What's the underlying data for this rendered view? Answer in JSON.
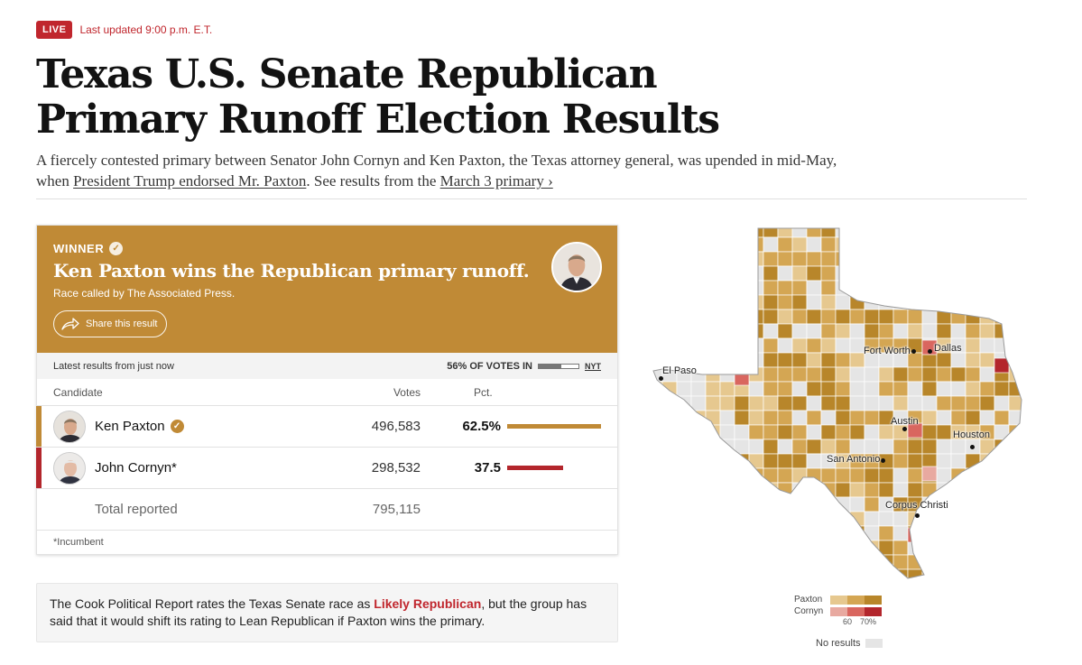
{
  "header": {
    "live_badge": "LIVE",
    "updated": "Last updated 9:00 p.m. E.T.",
    "headline": "Texas U.S. Senate Republican Primary Runoff Election Results",
    "dek_part1": "A fiercely contested primary between Senator John Cornyn and Ken Paxton, the Texas attorney general, was upended in mid-May, when ",
    "dek_link1": "President Trump endorsed Mr. Paxton",
    "dek_part2": ". See results from the ",
    "dek_link2": "March 3 primary ›"
  },
  "winner_panel": {
    "label": "WINNER",
    "title": "Ken Paxton wins the Republican primary runoff.",
    "subtitle": "Race called by The Associated Press.",
    "share_label": "Share this result",
    "accent_color": "#c08a36"
  },
  "status": {
    "latest": "Latest results from just now",
    "votes_in": "56% OF VOTES IN",
    "votes_in_fraction": 0.56,
    "source": "NYT"
  },
  "results_table": {
    "headers": {
      "candidate": "Candidate",
      "votes": "Votes",
      "pct": "Pct."
    },
    "rows": [
      {
        "name": "Ken Paxton",
        "votes": "496,583",
        "pct": "62.5%",
        "pct_value": 62.5,
        "color": "#c08a36",
        "winner": true
      },
      {
        "name": "John Cornyn*",
        "votes": "298,532",
        "pct": "37.5",
        "pct_value": 37.5,
        "color": "#b3262c",
        "winner": false
      }
    ],
    "total_label": "Total reported",
    "total_votes": "795,115",
    "footnote": "*Incumbent"
  },
  "cook": {
    "part1": "The Cook Political Report rates the Texas Senate race as ",
    "highlight": "Likely Republican",
    "part2": ", but the group has said that it would shift its rating to Lean Republican if Paxton wins the primary."
  },
  "map": {
    "cities": [
      "El Paso",
      "Fort Worth",
      "Dallas",
      "Austin",
      "Houston",
      "San Antonio",
      "Corpus Christi"
    ]
  },
  "legend": {
    "paxton_label": "Paxton",
    "cornyn_label": "Cornyn",
    "tick_60": "60",
    "tick_70": "70%",
    "no_results": "No results",
    "paxton_colors": [
      "#e6c88f",
      "#d4a653",
      "#b8862a"
    ],
    "cornyn_colors": [
      "#e8a9a0",
      "#d9665f",
      "#b3262c"
    ],
    "no_results_color": "#e5e5e5"
  }
}
